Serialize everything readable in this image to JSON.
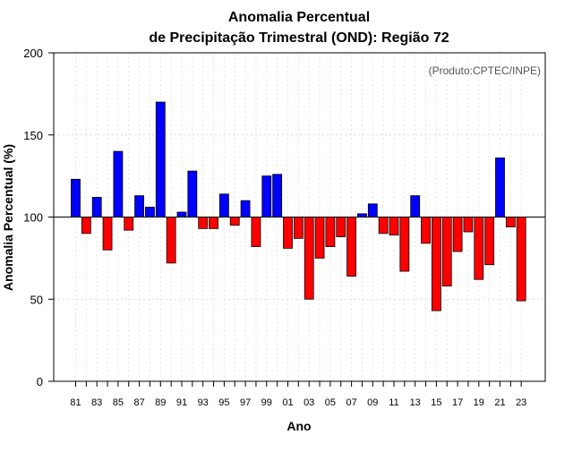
{
  "chart_data": {
    "type": "bar",
    "title_line1": "Anomalia Percentual",
    "title_line2": "de Precipitação Trimestral (OND): Região 72",
    "xlabel": "Ano",
    "ylabel": "Anomalia Percentual (%)",
    "credit": "(Produto:CPTEC/INPE)",
    "baseline": 100,
    "ylim": [
      0,
      200
    ],
    "yticks": [
      0,
      50,
      100,
      150,
      200
    ],
    "ytick_labels": [
      "0",
      "50",
      "100",
      "150",
      "200"
    ],
    "above_color": "#0000ff",
    "below_color": "#ff0000",
    "categories": [
      "81",
      "82",
      "83",
      "84",
      "85",
      "86",
      "87",
      "88",
      "89",
      "90",
      "91",
      "92",
      "93",
      "94",
      "95",
      "96",
      "97",
      "98",
      "99",
      "00",
      "01",
      "02",
      "03",
      "04",
      "05",
      "06",
      "07",
      "08",
      "09",
      "10",
      "11",
      "12",
      "13",
      "14",
      "15",
      "16",
      "17",
      "18",
      "19",
      "20",
      "21",
      "22",
      "23"
    ],
    "values": [
      123,
      90,
      112,
      80,
      140,
      92,
      113,
      106,
      170,
      72,
      103,
      128,
      93,
      93,
      114,
      95,
      110,
      82,
      125,
      126,
      81,
      87,
      50,
      75,
      82,
      88,
      64,
      102,
      108,
      90,
      89,
      67,
      113,
      84,
      43,
      58,
      79,
      91,
      62,
      71,
      136,
      94,
      49
    ],
    "xtick_labels": [
      "81",
      "83",
      "85",
      "87",
      "89",
      "91",
      "93",
      "95",
      "97",
      "99",
      "01",
      "03",
      "05",
      "07",
      "09",
      "11",
      "13",
      "15",
      "17",
      "19",
      "21",
      "23"
    ]
  }
}
